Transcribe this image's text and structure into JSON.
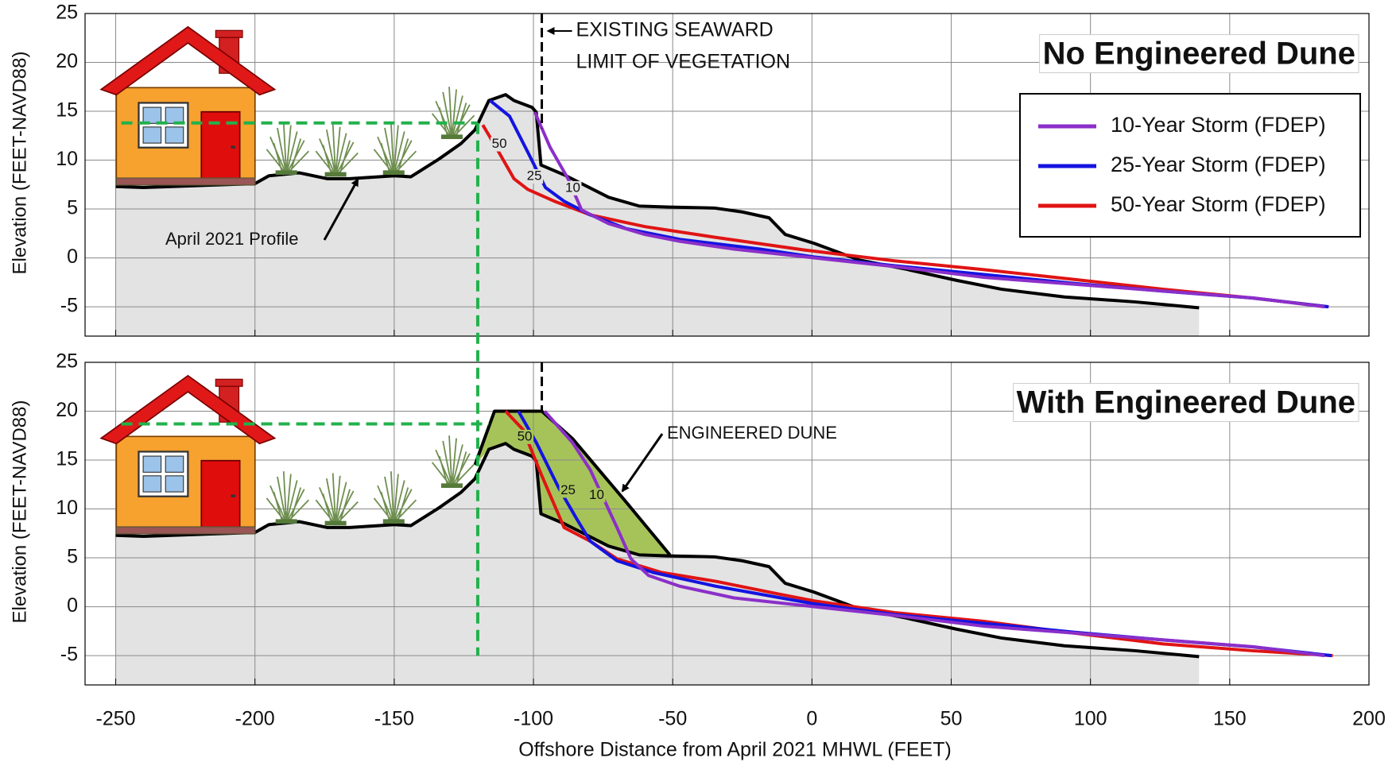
{
  "chart_data": [
    {
      "type": "line",
      "title": "No Engineered Dune",
      "ylabel": "Elevation (FEET-NAVD88)",
      "xlim": [
        -261,
        200
      ],
      "ylim": [
        -8,
        25
      ],
      "xticks": [
        -250,
        -200,
        -150,
        -100,
        -50,
        0,
        50,
        100,
        150,
        200
      ],
      "yticks": [
        -5,
        0,
        5,
        10,
        15,
        20,
        25
      ],
      "grid": true,
      "legend": "upper right",
      "series": [
        {
          "name": "April 2021 Profile",
          "color": "#000000",
          "fill": "#e3e3e3",
          "x": [
            -250,
            -240,
            -200,
            -195,
            -184,
            -174,
            -166,
            -150,
            -144,
            -134,
            -126,
            -121,
            -116,
            -110,
            -107,
            -100.5,
            -99,
            -97.3,
            -89,
            -73,
            -62,
            -51,
            -35,
            -25,
            -15.4,
            -9.6,
            0.7,
            16.8,
            32.9,
            52,
            68,
            90.7,
            116,
            139
          ],
          "values": [
            7.3,
            7.2,
            7.6,
            8.4,
            8.7,
            8.1,
            8.1,
            8.4,
            8.3,
            10.1,
            11.7,
            13.1,
            16.1,
            16.7,
            16.1,
            15.4,
            14.9,
            9.5,
            8.5,
            6.2,
            5.3,
            5.2,
            5.1,
            4.7,
            4.1,
            2.4,
            1.5,
            -0.2,
            -1.1,
            -2.3,
            -3.2,
            -4.0,
            -4.5,
            -5.1
          ]
        },
        {
          "name": "10-Year Storm (FDEP)",
          "color": "#8b2fc9",
          "curve_label": "10",
          "x": [
            -99.5,
            -94,
            -87.6,
            -82.7,
            -73,
            -60,
            -47.5,
            -28,
            1,
            30,
            62,
            94.3,
            126.4,
            158.6,
            184
          ],
          "values": [
            14.9,
            11.3,
            8.1,
            4.9,
            3.5,
            2.4,
            1.7,
            0.9,
            0,
            -0.9,
            -2,
            -2.7,
            -3.4,
            -4.1,
            -5
          ]
        },
        {
          "name": "25-Year Storm (FDEP)",
          "color": "#1414e0",
          "curve_label": "25",
          "x": [
            -115.6,
            -108.6,
            -102,
            -95.7,
            -89,
            -79.6,
            -66.8,
            -47.5,
            -18.6,
            0.7,
            29.6,
            61.8,
            94,
            126,
            158,
            185.5
          ],
          "values": [
            16.1,
            14.5,
            10.8,
            7.2,
            5.8,
            4.4,
            3,
            1.9,
            0.9,
            0.1,
            -0.8,
            -1.7,
            -2.6,
            -3.4,
            -4.1,
            -5
          ]
        },
        {
          "name": "50-Year Storm (FDEP)",
          "color": "#e01414",
          "curve_label": "50",
          "x": [
            -118.2,
            -113.4,
            -107,
            -102,
            -92.5,
            -79.6,
            -60,
            -34.6,
            -2.5,
            29.6,
            61.8,
            94,
            126,
            158,
            185.5
          ],
          "values": [
            13.6,
            11.3,
            8.1,
            7,
            5.8,
            4.4,
            3.2,
            2.1,
            0.8,
            -0.3,
            -1.2,
            -2.2,
            -3.2,
            -4.1,
            -5
          ]
        }
      ],
      "vegetation_line": {
        "x": -97,
        "label": [
          "EXISTING SEAWARD",
          "LIMIT OF VEGETATION"
        ]
      },
      "house_level": {
        "x": [
          -248,
          -120
        ],
        "y": 13.8
      }
    },
    {
      "type": "line",
      "title": "With Engineered Dune",
      "ylabel": "Elevation (FEET-NAVD88)",
      "xlabel": "Offshore Distance from April 2021 MHWL (FEET)",
      "xlim": [
        -261,
        200
      ],
      "ylim": [
        -8,
        25
      ],
      "xticks": [
        -250,
        -200,
        -150,
        -100,
        -50,
        0,
        50,
        100,
        150,
        200
      ],
      "yticks": [
        -5,
        0,
        5,
        10,
        15,
        20,
        25
      ],
      "grid": true,
      "series": [
        {
          "color": "#000000",
          "fill": "#e3e3e3",
          "x": [
            -250,
            -240,
            -200,
            -195,
            -184,
            -174,
            -166,
            -150,
            -144,
            -134,
            -126,
            -121,
            -116,
            -110,
            -107,
            -100.5,
            -99,
            -97.3,
            -89,
            -73,
            -62,
            -51,
            -35,
            -25,
            -15.4,
            -9.6,
            0.7,
            16.8,
            32.9,
            52,
            68,
            90.7,
            116,
            139
          ],
          "values": [
            7.3,
            7.2,
            7.6,
            8.4,
            8.7,
            8.1,
            8.1,
            8.4,
            8.3,
            10.1,
            11.7,
            13.1,
            16.1,
            16.7,
            16.1,
            15.4,
            14.9,
            9.5,
            8.5,
            6.2,
            5.3,
            5.2,
            5.1,
            4.7,
            4.1,
            2.4,
            1.5,
            -0.2,
            -1.1,
            -2.3,
            -3.2,
            -4.0,
            -4.5,
            -5.1
          ]
        },
        {
          "color": "#8b2fc9",
          "curve_label": "10",
          "x": [
            -96,
            -86,
            -79.6,
            -70,
            -65,
            -58.7,
            -47.5,
            -28,
            1,
            30,
            62,
            94.3,
            126.4,
            158.6,
            184
          ],
          "values": [
            20,
            16.8,
            14,
            8.1,
            4.9,
            3.2,
            2.1,
            0.9,
            0,
            -0.9,
            -2,
            -2.7,
            -3.4,
            -4.1,
            -5
          ]
        },
        {
          "color": "#1414e0",
          "curve_label": "25",
          "x": [
            -105.4,
            -99,
            -91,
            -84.5,
            -79.6,
            -70,
            -57,
            -34.6,
            0.7,
            29.6,
            61.8,
            94,
            126,
            158,
            186.5
          ],
          "values": [
            20,
            16.8,
            12.2,
            9,
            6.7,
            4.7,
            3.5,
            2.1,
            0.3,
            -0.8,
            -1.7,
            -2.6,
            -3.4,
            -4.1,
            -5
          ]
        },
        {
          "color": "#e01414",
          "curve_label": "50",
          "x": [
            -110,
            -103.7,
            -97.3,
            -89,
            -79.6,
            -70,
            -54,
            -34.6,
            -12,
            0.7,
            29.6,
            61.8,
            94,
            126,
            158,
            187
          ],
          "values": [
            20,
            18.1,
            13.6,
            8.1,
            6.7,
            4.9,
            3.5,
            2.6,
            1.3,
            0.6,
            -0.6,
            -1.5,
            -2.7,
            -3.8,
            -4.5,
            -5
          ]
        }
      ],
      "engineered_dune": {
        "label": "ENGINEERED DUNE",
        "color": "#a6c35a",
        "x": [
          -121,
          -114,
          -97,
          -86,
          -67,
          -51
        ],
        "values": [
          14.5,
          20,
          20,
          17.2,
          10.8,
          5.3
        ]
      },
      "vegetation_line": {
        "x": -97
      },
      "house_level": {
        "x": [
          -248,
          -116
        ],
        "y": 18.7
      }
    }
  ]
}
